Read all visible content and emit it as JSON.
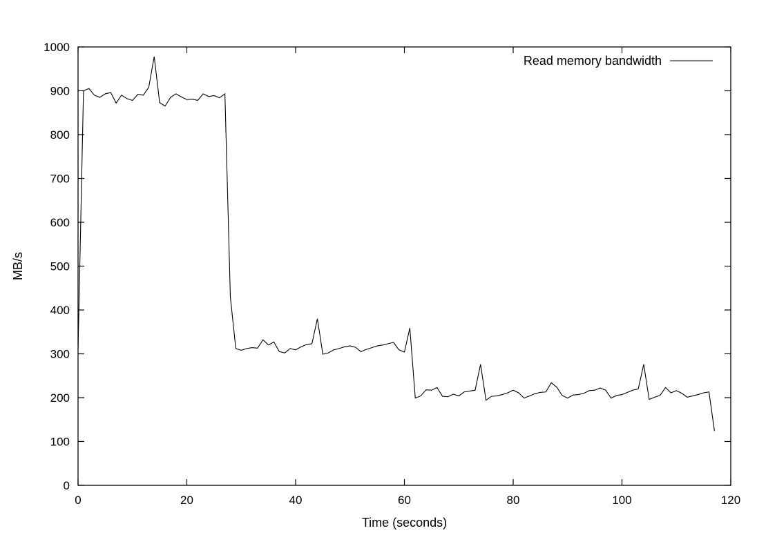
{
  "chart_data": {
    "type": "line",
    "title": "",
    "xlabel": "Time (seconds)",
    "ylabel": "MB/s",
    "xlim": [
      0,
      120
    ],
    "ylim": [
      0,
      1000
    ],
    "xticks": [
      0,
      20,
      40,
      60,
      80,
      100,
      120
    ],
    "yticks": [
      0,
      100,
      200,
      300,
      400,
      500,
      600,
      700,
      800,
      900,
      1000
    ],
    "grid": false,
    "legend_position": "top-right",
    "line_color": "#000000",
    "series": [
      {
        "name": "Read memory bandwidth",
        "x": [
          0,
          1,
          2,
          3,
          4,
          5,
          6,
          7,
          8,
          9,
          10,
          11,
          12,
          13,
          14,
          15,
          16,
          17,
          18,
          19,
          20,
          21,
          22,
          23,
          24,
          25,
          26,
          27,
          28,
          29,
          30,
          31,
          32,
          33,
          34,
          35,
          36,
          37,
          38,
          39,
          40,
          41,
          42,
          43,
          44,
          45,
          46,
          47,
          48,
          49,
          50,
          51,
          52,
          53,
          54,
          55,
          56,
          57,
          58,
          59,
          60,
          61,
          62,
          63,
          64,
          65,
          66,
          67,
          68,
          69,
          70,
          71,
          72,
          73,
          74,
          75,
          76,
          77,
          78,
          79,
          80,
          81,
          82,
          83,
          84,
          85,
          86,
          87,
          88,
          89,
          90,
          91,
          92,
          93,
          94,
          95,
          96,
          97,
          98,
          99,
          100,
          101,
          102,
          103,
          104,
          105,
          106,
          107,
          108,
          109,
          110,
          111,
          112,
          113,
          114,
          115,
          116,
          117
        ],
        "y": [
          310,
          900,
          905,
          890,
          885,
          893,
          896,
          872,
          890,
          882,
          878,
          892,
          890,
          908,
          978,
          873,
          865,
          885,
          893,
          886,
          880,
          881,
          878,
          893,
          887,
          889,
          884,
          893,
          430,
          312,
          308,
          312,
          314,
          313,
          332,
          320,
          327,
          305,
          302,
          312,
          309,
          316,
          321,
          323,
          380,
          299,
          302,
          309,
          312,
          316,
          318,
          315,
          305,
          310,
          314,
          318,
          320,
          323,
          326,
          309,
          304,
          359,
          199,
          204,
          218,
          217,
          223,
          203,
          202,
          208,
          204,
          213,
          215,
          217,
          276,
          194,
          203,
          204,
          207,
          211,
          217,
          211,
          199,
          204,
          209,
          212,
          213,
          234,
          224,
          205,
          199,
          206,
          207,
          210,
          216,
          217,
          222,
          217,
          199,
          205,
          207,
          212,
          217,
          220,
          276,
          196,
          201,
          205,
          223,
          211,
          216,
          210,
          201,
          204,
          207,
          211,
          213,
          124
        ]
      }
    ]
  }
}
